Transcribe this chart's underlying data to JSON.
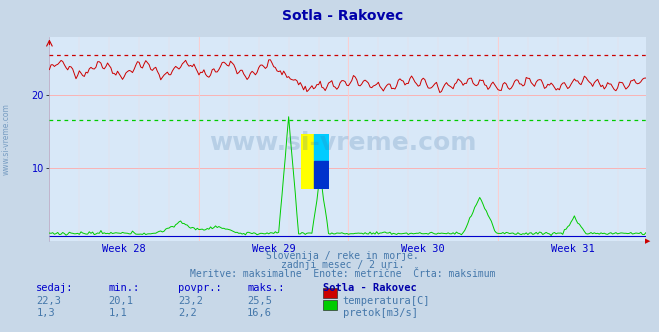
{
  "title": "Sotla - Rakovec",
  "bg_color": "#c8d8e8",
  "plot_bg_color": "#d8e8f8",
  "grid_color_h": "#ffaaaa",
  "grid_color_v": "#ffcccc",
  "title_color": "#0000aa",
  "axis_label_color": "#0000cc",
  "text_color": "#4477aa",
  "week_labels": [
    "Week 28",
    "Week 29",
    "Week 30",
    "Week 31"
  ],
  "ylim": [
    0,
    28
  ],
  "yticks": [
    10,
    20
  ],
  "temp_max_line": 25.5,
  "flow_max_line": 16.6,
  "caption_lines": [
    "Slovenija / reke in morje.",
    "zadnji mesec / 2 uri.",
    "Meritve: maksimalne  Enote: metrične  Črta: maksimum"
  ],
  "table_headers": [
    "sedaj:",
    "min.:",
    "povpr.:",
    "maks.:",
    "Sotla - Rakovec"
  ],
  "table_row1": [
    "22,3",
    "20,1",
    "23,2",
    "25,5",
    "temperatura[C]"
  ],
  "table_row2": [
    "1,3",
    "1,1",
    "2,2",
    "16,6",
    "pretok[m3/s]"
  ],
  "temp_color": "#cc0000",
  "flow_color": "#00cc00",
  "sidebar_text": "www.si-vreme.com",
  "watermark_text": "www.si-vreme.com",
  "watermark_color": "#4477aa",
  "n_points": 360,
  "logo_colors": {
    "top_left": "#ffff00",
    "top_right": "#00ccff",
    "bottom_left": "#ffff00",
    "bottom_right": "#0033cc"
  }
}
